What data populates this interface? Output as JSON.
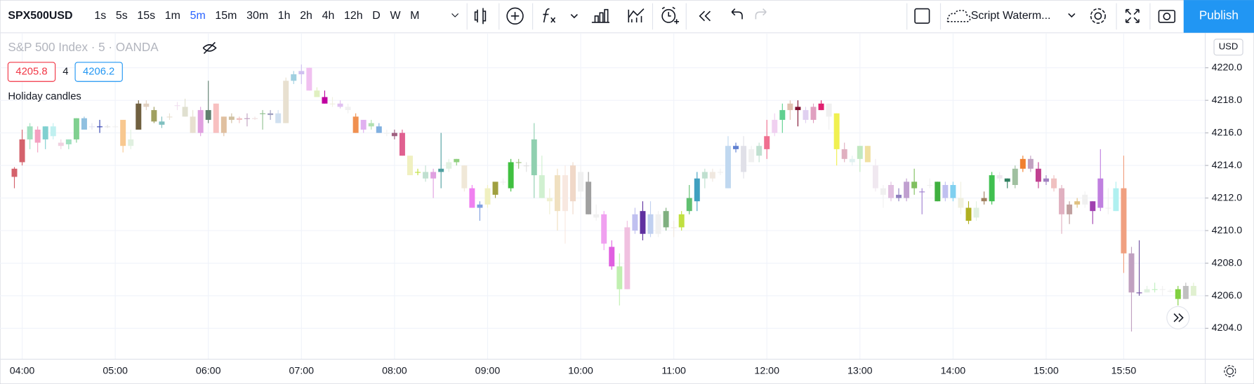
{
  "toolbar": {
    "symbol": "SPX500USD",
    "intervals": [
      "1s",
      "5s",
      "15s",
      "1m",
      "5m",
      "15m",
      "30m",
      "1h",
      "2h",
      "4h",
      "12h",
      "D",
      "W",
      "M"
    ],
    "active_interval": "5m",
    "template": "Script Waterm...",
    "publish": "Publish"
  },
  "legend": {
    "title": "S&P 500 Index · 5 · OANDA",
    "bid": 4205.8,
    "spread": 4,
    "ask": 4206.2,
    "indicator": "Holiday candles"
  },
  "chart_data": {
    "type": "candlestick",
    "x": [
      "03:55",
      "04:00",
      "04:05",
      "04:10",
      "04:15",
      "04:20",
      "04:25",
      "04:30",
      "04:35",
      "04:40",
      "04:45",
      "04:50",
      "04:55",
      "05:00",
      "05:05",
      "05:10",
      "05:15",
      "05:20",
      "05:25",
      "05:30",
      "05:35",
      "05:40",
      "05:45",
      "05:50",
      "05:55",
      "06:00",
      "06:05",
      "06:10",
      "06:15",
      "06:20",
      "06:25",
      "06:30",
      "06:35",
      "06:40",
      "06:45",
      "06:50",
      "06:55",
      "07:00",
      "07:05",
      "07:10",
      "07:15",
      "07:20",
      "07:25",
      "07:30",
      "07:35",
      "07:40",
      "07:45",
      "07:50",
      "07:55",
      "08:00",
      "08:05",
      "08:10",
      "08:15",
      "08:20",
      "08:25",
      "08:30",
      "08:35",
      "08:40",
      "08:45",
      "08:50",
      "08:55",
      "09:00",
      "09:05",
      "09:10",
      "09:15",
      "09:20",
      "09:25",
      "09:30",
      "09:35",
      "09:40",
      "09:45",
      "09:50",
      "09:55",
      "10:00",
      "10:05",
      "10:10",
      "10:15",
      "10:20",
      "10:25",
      "10:30",
      "10:35",
      "10:40",
      "10:45",
      "10:50",
      "10:55",
      "11:00",
      "11:05",
      "11:10",
      "11:15",
      "11:20",
      "11:25",
      "11:30",
      "11:35",
      "11:40",
      "11:45",
      "11:50",
      "11:55",
      "12:00",
      "12:05",
      "12:10",
      "12:15",
      "12:20",
      "12:25",
      "12:30",
      "12:35",
      "12:40",
      "12:45",
      "12:50",
      "12:55",
      "13:00",
      "13:05",
      "13:10",
      "13:15",
      "13:20",
      "13:25",
      "13:30",
      "13:35",
      "13:40",
      "13:45",
      "13:50",
      "13:55",
      "14:00",
      "14:05",
      "14:10",
      "14:15",
      "14:20",
      "14:25",
      "14:30",
      "14:35",
      "14:40",
      "14:45",
      "14:50",
      "14:55",
      "15:00",
      "15:05",
      "15:10",
      "15:15",
      "15:20",
      "15:25",
      "15:30",
      "15:35",
      "15:40",
      "15:45",
      "15:50",
      "15:55",
      "16:00",
      "16:05",
      "16:10",
      "16:15",
      "16:20",
      "16:25",
      "16:30",
      "16:35"
    ],
    "open": [
      4213.3,
      4214.2,
      4215.6,
      4216.2,
      4215.6,
      4216.4,
      4215.4,
      4215.3,
      4215.6,
      4216.9,
      4216.4,
      4216.4,
      4216.4,
      4216.4,
      4216.8,
      4215.2,
      4216.2,
      4217.8,
      4217.4,
      4216.7,
      4217.0,
      4217.7,
      4217.6,
      4217.0,
      4216.0,
      4216.8,
      4217.8,
      4217.0,
      4216.8,
      4216.9,
      4216.9,
      4216.9,
      4217.2,
      4217.2,
      4216.6,
      4216.6,
      4219.2,
      4219.6,
      4220.0,
      4218.6,
      4218.2,
      4217.8,
      4217.8,
      4217.6,
      4217.0,
      4216.8,
      4216.4,
      4216.4,
      4216.0,
      4216.0,
      4216.0,
      4214.6,
      4213.6,
      4213.6,
      4213.2,
      4213.6,
      4213.8,
      4214.2,
      4214.0,
      4212.6,
      4211.4,
      4211.6,
      4212.2,
      4213.0,
      4212.6,
      4214.2,
      4214.0,
      4213.4,
      4213.4,
      4212.0,
      4211.2,
      4213.4,
      4214.0,
      4212.4,
      4213.0,
      4210.8,
      4211.0,
      4209.0,
      4206.4,
      4206.4,
      4210.0,
      4209.8,
      4211.0,
      4209.8,
      4211.2,
      4210.2,
      4210.2,
      4211.2,
      4211.8,
      4213.2,
      4213.2,
      4213.6,
      4212.6,
      4215.0,
      4215.2,
      4214.2,
      4215.2,
      4215.0,
      4216.0,
      4216.8,
      4217.4,
      4217.6,
      4217.4,
      4216.8,
      4217.4,
      4217.8,
      4217.2,
      4215.0,
      4214.2,
      4214.4,
      4215.2,
      4214.0,
      4212.6,
      4212.8,
      4212.2,
      4212.0,
      4213.0,
      4212.4,
      4212.8,
      4213.0,
      4212.0,
      4212.8,
      4212.0,
      4211.4,
      4210.8,
      4212.0,
      4211.8,
      4213.4,
      4213.0,
      4212.8,
      4213.8,
      4214.4,
      4213.8,
      4213.0,
      4213.2,
      4212.6,
      4211.6,
      4211.8,
      4211.6,
      4211.2,
      4211.4,
      4211.4,
      4211.2,
      4212.6,
      4208.6,
      4206.2,
      4206.2,
      4206.4,
      4206.4,
      4206.3,
      4205.8,
      4205.8,
      4206.0
    ],
    "high": [
      4213.9,
      4216.2,
      4216.6,
      4216.4,
      4216.4,
      4216.6,
      4215.6,
      4215.6,
      4216.9,
      4217.0,
      4216.6,
      4216.8,
      4216.5,
      4216.5,
      4216.8,
      4216.2,
      4218.0,
      4218.0,
      4217.6,
      4217.0,
      4217.2,
      4217.9,
      4218.1,
      4217.4,
      4217.6,
      4219.2,
      4217.8,
      4217.0,
      4217.2,
      4217.0,
      4217.2,
      4217.0,
      4217.4,
      4217.4,
      4217.4,
      4219.4,
      4219.8,
      4220.2,
      4220.0,
      4218.8,
      4218.6,
      4218.2,
      4218.0,
      4217.8,
      4217.2,
      4216.8,
      4216.8,
      4216.6,
      4216.2,
      4216.2,
      4216.2,
      4214.6,
      4213.8,
      4214.0,
      4213.8,
      4216.0,
      4214.4,
      4214.4,
      4214.0,
      4212.8,
      4211.8,
      4212.8,
      4212.8,
      4213.2,
      4214.4,
      4214.4,
      4214.2,
      4216.6,
      4214.6,
      4212.6,
      4213.8,
      4214.0,
      4214.2,
      4214.0,
      4213.6,
      4211.6,
      4211.2,
      4209.4,
      4208.6,
      4210.6,
      4211.4,
      4211.8,
      4211.8,
      4211.2,
      4211.4,
      4210.6,
      4211.2,
      4212.8,
      4213.6,
      4213.8,
      4213.8,
      4213.8,
      4215.8,
      4215.4,
      4215.8,
      4215.2,
      4215.4,
      4216.8,
      4217.2,
      4217.8,
      4218.0,
      4218.0,
      4217.6,
      4217.8,
      4218.0,
      4217.8,
      4217.2,
      4215.4,
      4214.6,
      4215.2,
      4215.2,
      4214.4,
      4212.8,
      4213.0,
      4212.6,
      4213.2,
      4213.8,
      4212.6,
      4213.2,
      4213.0,
      4213.0,
      4213.0,
      4213.0,
      4211.8,
      4211.8,
      4212.4,
      4213.6,
      4213.6,
      4213.2,
      4214.0,
      4214.6,
      4214.6,
      4214.2,
      4213.4,
      4213.4,
      4212.8,
      4211.8,
      4212.0,
      4212.4,
      4211.8,
      4215.0,
      4212.6,
      4213.0,
      4214.6,
      4209.0,
      4209.4,
      4206.6,
      4206.8,
      4206.6,
      4206.4,
      4206.6,
      4206.8,
      4206.8
    ],
    "low": [
      4212.6,
      4214.0,
      4215.0,
      4214.8,
      4215.0,
      4215.6,
      4215.0,
      4215.0,
      4215.4,
      4216.2,
      4216.2,
      4216.0,
      4216.3,
      4216.3,
      4214.8,
      4215.0,
      4216.2,
      4217.4,
      4216.6,
      4216.3,
      4216.8,
      4217.4,
      4217.0,
      4216.0,
      4215.8,
      4216.6,
      4216.0,
      4215.8,
      4216.6,
      4216.6,
      4216.4,
      4216.8,
      4216.2,
      4216.8,
      4216.6,
      4216.6,
      4219.0,
      4219.0,
      4218.6,
      4218.2,
      4217.8,
      4217.6,
      4217.5,
      4217.2,
      4216.0,
      4216.0,
      4216.2,
      4216.0,
      4215.8,
      4215.6,
      4214.6,
      4213.4,
      4213.4,
      4213.0,
      4212.0,
      4212.6,
      4213.6,
      4214.0,
      4212.4,
      4211.4,
      4210.6,
      4211.4,
      4212.0,
      4212.8,
      4212.4,
      4213.8,
      4213.6,
      4212.0,
      4212.0,
      4211.0,
      4210.0,
      4209.2,
      4211.0,
      4212.0,
      4211.0,
      4210.6,
      4208.8,
      4207.6,
      4205.4,
      4206.4,
      4209.8,
      4209.4,
      4209.6,
      4209.6,
      4210.0,
      4209.6,
      4210.0,
      4211.0,
      4211.2,
      4212.6,
      4213.0,
      4213.4,
      4212.6,
      4214.8,
      4213.2,
      4214.2,
      4214.2,
      4214.4,
      4215.8,
      4216.0,
      4216.8,
      4216.4,
      4216.6,
      4216.6,
      4217.4,
      4216.2,
      4214.0,
      4214.2,
      4214.0,
      4213.6,
      4214.2,
      4212.4,
      4211.4,
      4211.8,
      4211.8,
      4211.8,
      4212.2,
      4211.0,
      4212.6,
      4211.8,
      4211.8,
      4211.8,
      4211.0,
      4210.4,
      4210.6,
      4211.6,
      4211.6,
      4213.0,
      4212.6,
      4212.6,
      4213.6,
      4213.6,
      4212.6,
      4212.8,
      4212.4,
      4209.8,
      4210.4,
      4211.4,
      4211.4,
      4210.4,
      4211.2,
      4211.0,
      4211.2,
      4207.4,
      4203.8,
      4206.0,
      4206.2,
      4206.2,
      4206.0,
      4206.2,
      4205.4,
      4205.8,
      4206.0
    ],
    "close": [
      4213.8,
      4215.6,
      4216.4,
      4215.4,
      4216.4,
      4215.8,
      4215.2,
      4215.6,
      4216.9,
      4216.2,
      4216.4,
      4216.4,
      4216.4,
      4216.4,
      4215.2,
      4215.6,
      4217.8,
      4217.6,
      4216.7,
      4216.5,
      4217.0,
      4217.7,
      4217.0,
      4216.0,
      4217.4,
      4217.4,
      4216.0,
      4216.0,
      4217.0,
      4216.8,
      4216.9,
      4216.9,
      4217.2,
      4217.1,
      4217.2,
      4219.2,
      4219.6,
      4219.8,
      4218.6,
      4218.2,
      4217.8,
      4217.8,
      4217.6,
      4217.4,
      4216.0,
      4216.2,
      4216.6,
      4216.0,
      4216.0,
      4215.8,
      4214.6,
      4213.4,
      4213.6,
      4213.2,
      4213.6,
      4213.8,
      4214.2,
      4214.4,
      4212.6,
      4211.4,
      4211.6,
      4212.6,
      4213.0,
      4213.0,
      4214.2,
      4214.2,
      4214.0,
      4215.6,
      4212.0,
      4211.8,
      4213.4,
      4211.2,
      4211.8,
      4213.6,
      4211.0,
      4211.0,
      4209.2,
      4207.8,
      4207.8,
      4210.2,
      4211.0,
      4211.2,
      4209.8,
      4211.0,
      4210.2,
      4210.2,
      4211.0,
      4212.0,
      4213.2,
      4213.6,
      4213.6,
      4213.6,
      4215.2,
      4215.2,
      4213.6,
      4215.0,
      4214.6,
      4215.8,
      4216.8,
      4217.4,
      4217.8,
      4217.4,
      4216.8,
      4217.6,
      4217.8,
      4217.0,
      4215.0,
      4214.4,
      4214.4,
      4215.2,
      4214.2,
      4212.6,
      4212.2,
      4212.0,
      4212.0,
      4213.0,
      4212.6,
      4212.4,
      4212.8,
      4211.8,
      4212.8,
      4212.0,
      4211.4,
      4210.6,
      4211.4,
      4211.8,
      4213.4,
      4213.2,
      4213.2,
      4213.8,
      4214.4,
      4213.8,
      4213.0,
      4213.2,
      4212.6,
      4211.0,
      4211.0,
      4211.6,
      4212.2,
      4211.8,
      4213.2,
      4211.4,
      4212.6,
      4208.6,
      4206.2,
      4206.2,
      4206.4,
      4206.4,
      4206.4,
      4206.3,
      4206.4,
      4206.6,
      4206.6
    ],
    "colors": [
      "#d4626c",
      "#d4626c",
      "#a0e0c0",
      "#f4a0c0",
      "#80d0d0",
      "#c0f0f0",
      "#f0d0e0",
      "#a0e0c0",
      "#80d090",
      "#90c0e0",
      "#e0e0f0",
      "#3040b0",
      "#e0e0e0",
      "#f0f0f0",
      "#f8c890",
      "#e0f0e0",
      "#706040",
      "#e0d0c0",
      "#a0a060",
      "#80c0c0",
      "#e8e0d0",
      "#f0e0f0",
      "#e0e0d0",
      "#e8e0d0",
      "#e0a0e0",
      "#608070",
      "#f8c0c0",
      "#e0c0a0",
      "#d0c0a0",
      "#f0c0c0",
      "#c0a0c0",
      "#f0e0e0",
      "#90c090",
      "#a0a0c0",
      "#d0e0f0",
      "#e8e0d0",
      "#a0d0e0",
      "#d0c0f0",
      "#f0c0f0",
      "#e0f0c0",
      "#c000a0",
      "#f0f0e0",
      "#e0c0f0",
      "#f0f0f0",
      "#f09050",
      "#e0b0f0",
      "#b0e0b0",
      "#80b0e0",
      "#f0f0f0",
      "#a06080",
      "#e06090",
      "#f0f0c0",
      "#c0e040",
      "#c0e0d0",
      "#e0a0e0",
      "#50a0a0",
      "#e0f0e0",
      "#90d080",
      "#f0e8d8",
      "#f080f0",
      "#80a0e0",
      "#f0f0c0",
      "#a0a040",
      "#f0f0f0",
      "#40c040",
      "#a0c080",
      "#e0e0e0",
      "#90d0b0",
      "#d0f0d0",
      "#f0f0d0",
      "#f0e0c0",
      "#f8e8e0",
      "#f0d8c8",
      "#f0f0f0",
      "#a0a0a0",
      "#f0f0f0",
      "#f0a0f0",
      "#e060e0",
      "#c0f0b0",
      "#f0c0e0",
      "#c0c0f0",
      "#6030a0",
      "#c0d0f0",
      "#f0f0f0",
      "#80b080",
      "#f0e8e0",
      "#c0e040",
      "#60c070",
      "#40a0c0",
      "#c0e0d0",
      "#f0e8e0",
      "#f0f0f0",
      "#c0d8f0",
      "#6080d0",
      "#e0e0e8",
      "#f0f0f0",
      "#c0e0d0",
      "#f07090",
      "#f0d0f0",
      "#60d090",
      "#e0c0b0",
      "#801030",
      "#e0d0f0",
      "#e0a0c0",
      "#e02070",
      "#f0f0f0",
      "#f0f050",
      "#e0b0c0",
      "#e0f0f0",
      "#c0e8c0",
      "#f0e0a0",
      "#f0e8f0",
      "#f0f0f0",
      "#e0c0e0",
      "#9080c0",
      "#c0a0d0",
      "#80c060",
      "#a080d0",
      "#f0f0f0",
      "#40b040",
      "#c0c0f0",
      "#80d0f0",
      "#f0f0e0",
      "#b0b020",
      "#e0f0e0",
      "#a08060",
      "#40c050",
      "#f0e8f0",
      "#308060",
      "#a0c0a0",
      "#f08030",
      "#c0a0c0",
      "#c04090",
      "#a080c0",
      "#f0c0c0",
      "#e0b0c0",
      "#c0a0a0",
      "#e0c080",
      "#f0f0f0",
      "#a040b0",
      "#c080e0",
      "#f0f0f0",
      "#b0f0f0",
      "#f0a080",
      "#c0a0c0",
      "#7050a0",
      "#e0f0e0",
      "#c0f0c0",
      "#f0f0f0",
      "#f0f0f0",
      "#80d040",
      "#c0c0c0",
      "#e0f0d0"
    ],
    "ylim": [
      4202.1,
      4222.1
    ],
    "yticks": [
      {
        "value": 4204,
        "label": "4204.0"
      },
      {
        "value": 4206,
        "label": "4206.0"
      },
      {
        "value": 4208,
        "label": "4208.0"
      },
      {
        "value": 4210,
        "label": "4210.0"
      },
      {
        "value": 4212,
        "label": "4212.0"
      },
      {
        "value": 4214,
        "label": "4214.0"
      },
      {
        "value": 4216,
        "label": "4216.0"
      },
      {
        "value": 4218,
        "label": "4218.0"
      },
      {
        "value": 4220,
        "label": "4220.0"
      }
    ],
    "xticks": [
      "04:00",
      "05:00",
      "06:00",
      "07:00",
      "08:00",
      "09:00",
      "10:00",
      "11:00",
      "12:00",
      "13:00",
      "14:00",
      "15:00",
      "15:50"
    ],
    "currency": "USD",
    "grid": true
  }
}
